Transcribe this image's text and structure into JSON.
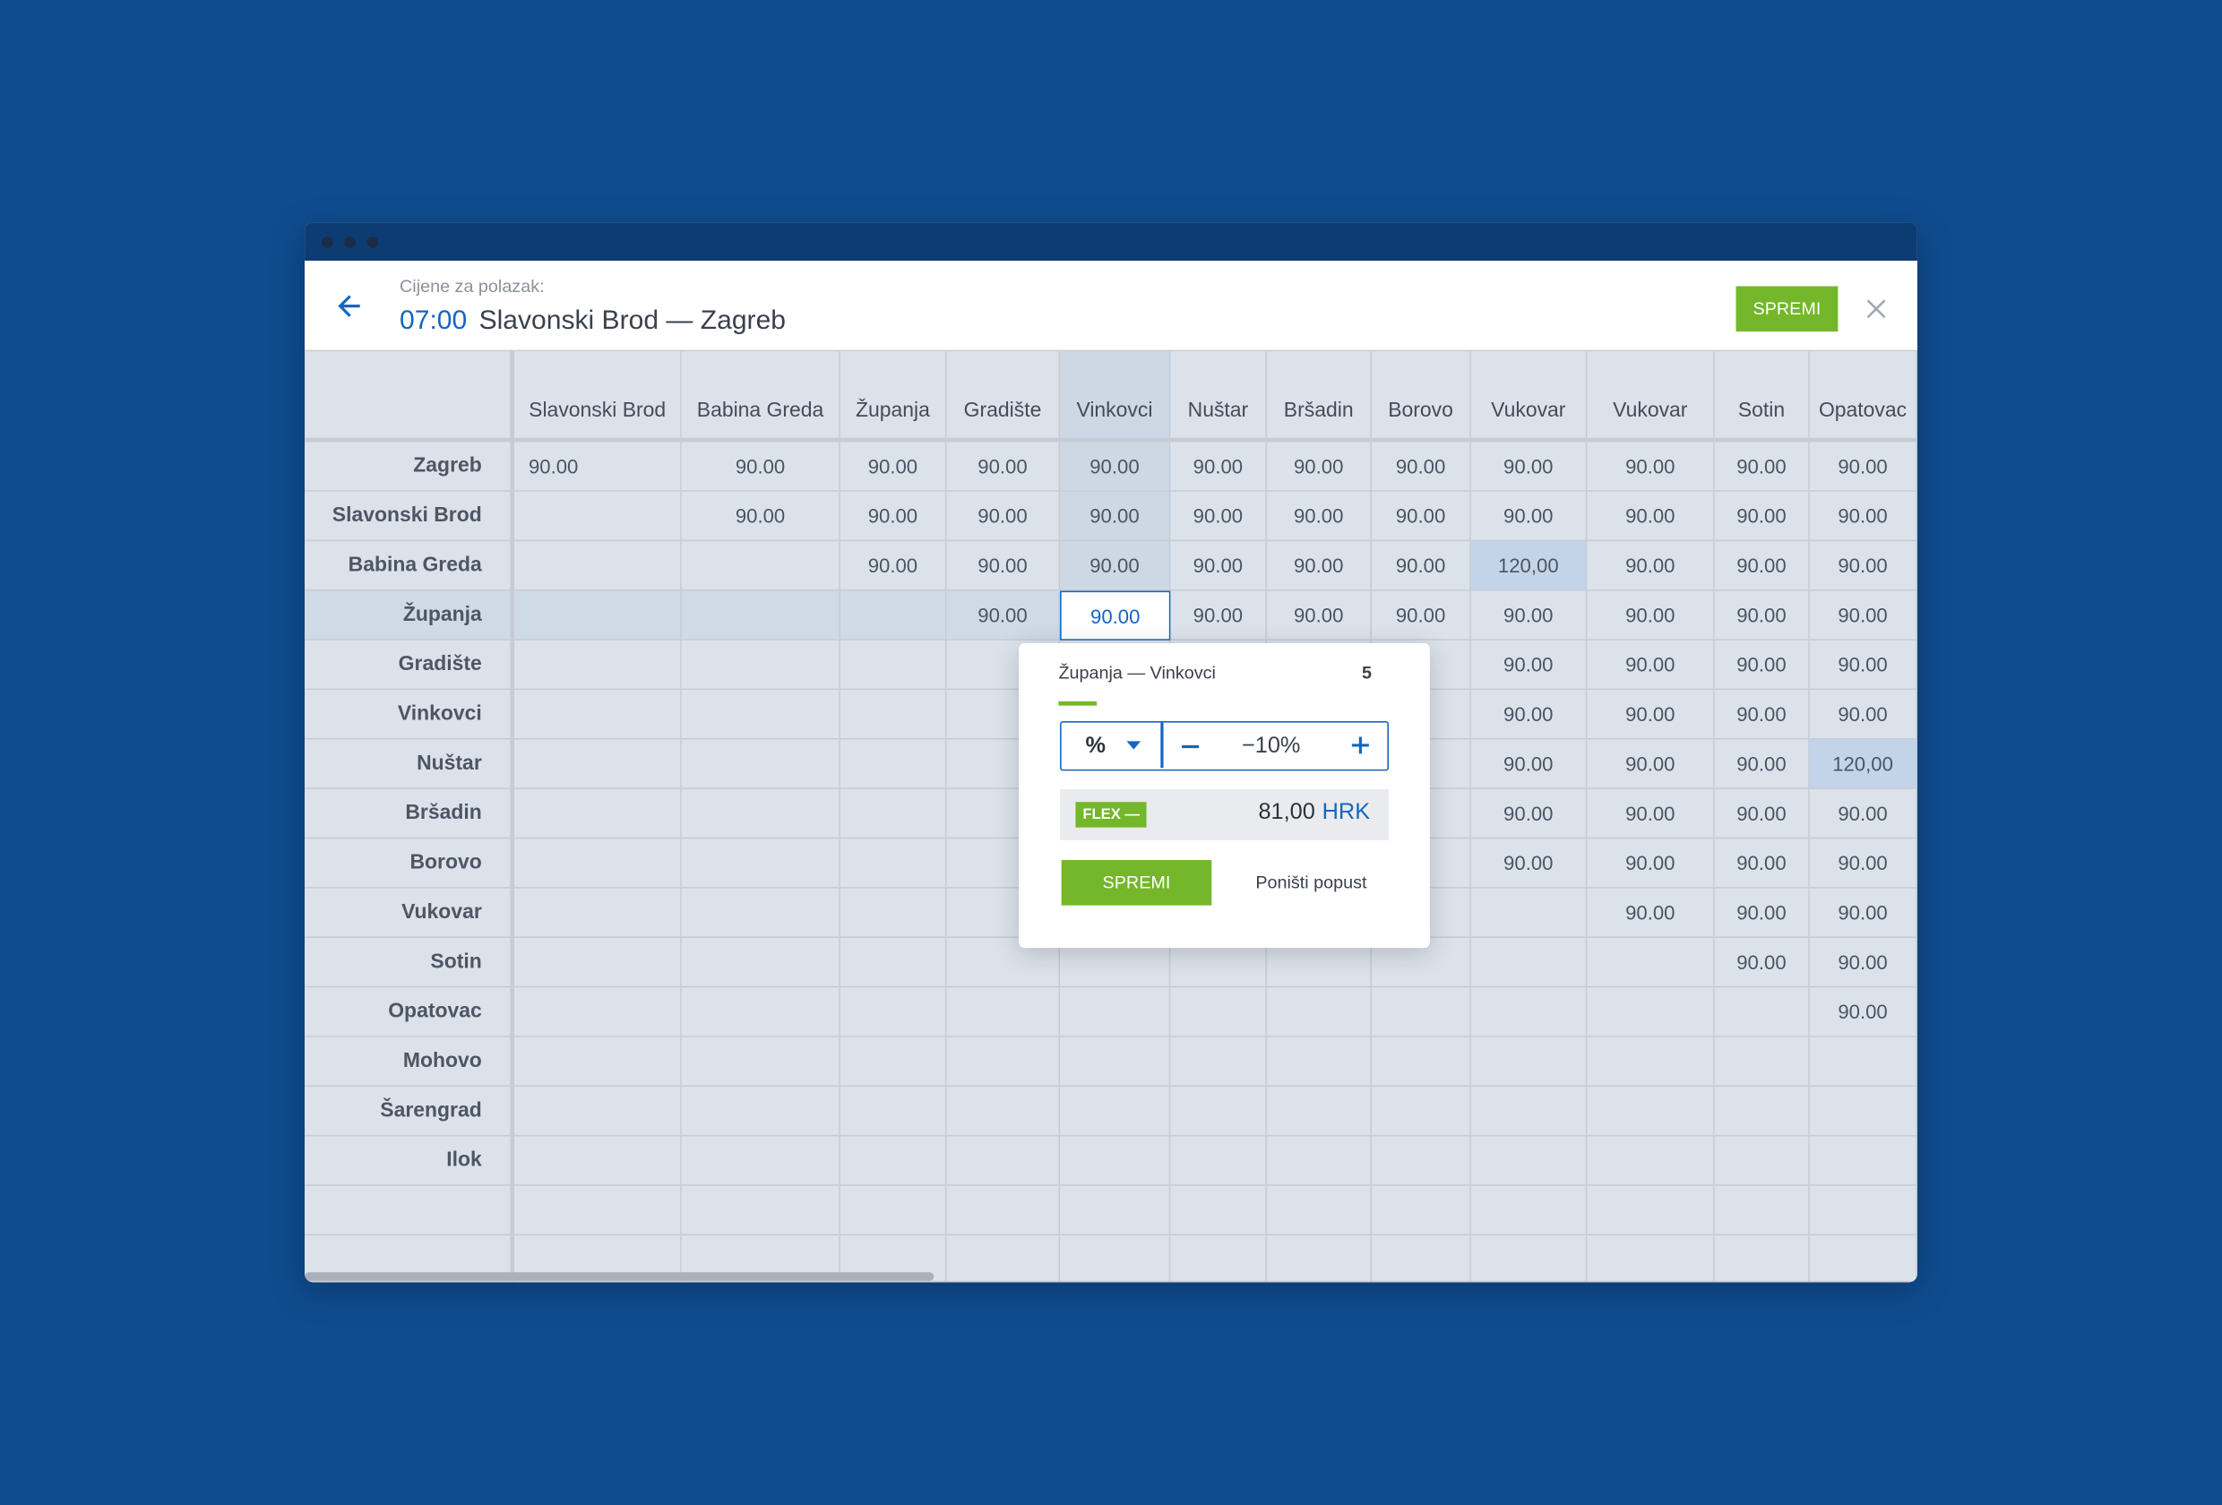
{
  "header": {
    "subtitle": "Cijene za polazak:",
    "time": "07:00",
    "route": "Slavonski Brod — Zagreb",
    "save": "SPREMI"
  },
  "table": {
    "columns": [
      "Slavonski Brod",
      "Babina Greda",
      "Županja",
      "Gradište",
      "Vinkovci",
      "Nuštar",
      "Bršadin",
      "Borovo",
      "Vukovar",
      "Vukovar",
      "Sotin",
      "Opatovac"
    ],
    "rows": [
      {
        "label": "Zagreb",
        "cells": [
          "90.00",
          "90.00",
          "90.00",
          "90.00",
          "90.00",
          "90.00",
          "90.00",
          "90.00",
          "90.00",
          "90.00",
          "90.00",
          "90.00"
        ]
      },
      {
        "label": "Slavonski Brod",
        "cells": [
          null,
          "90.00",
          "90.00",
          "90.00",
          "90.00",
          "90.00",
          "90.00",
          "90.00",
          "90.00",
          "90.00",
          "90.00",
          "90.00"
        ]
      },
      {
        "label": "Babina Greda",
        "cells": [
          null,
          null,
          "90.00",
          "90.00",
          "90.00",
          "90.00",
          "90.00",
          "90.00",
          "120,00",
          "90.00",
          "90.00",
          "90.00"
        ]
      },
      {
        "label": "Županja",
        "cells": [
          null,
          null,
          null,
          "90.00",
          "90.00",
          "90.00",
          "90.00",
          "90.00",
          "90.00",
          "90.00",
          "90.00",
          "90.00"
        ]
      },
      {
        "label": "Gradište",
        "cells": [
          null,
          null,
          null,
          null,
          null,
          null,
          null,
          null,
          "90.00",
          "90.00",
          "90.00",
          "90.00"
        ]
      },
      {
        "label": "Vinkovci",
        "cells": [
          null,
          null,
          null,
          null,
          null,
          null,
          null,
          null,
          "90.00",
          "90.00",
          "90.00",
          "90.00"
        ]
      },
      {
        "label": "Nuštar",
        "cells": [
          null,
          null,
          null,
          null,
          null,
          null,
          null,
          null,
          "90.00",
          "90.00",
          "90.00",
          "120,00"
        ]
      },
      {
        "label": "Bršadin",
        "cells": [
          null,
          null,
          null,
          null,
          null,
          null,
          null,
          null,
          "90.00",
          "90.00",
          "90.00",
          "90.00"
        ]
      },
      {
        "label": "Borovo",
        "cells": [
          null,
          null,
          null,
          null,
          null,
          null,
          null,
          null,
          "90.00",
          "90.00",
          "90.00",
          "90.00"
        ]
      },
      {
        "label": "Vukovar",
        "cells": [
          null,
          null,
          null,
          null,
          null,
          null,
          null,
          null,
          null,
          "90.00",
          "90.00",
          "90.00"
        ]
      },
      {
        "label": "Sotin",
        "cells": [
          null,
          null,
          null,
          null,
          null,
          null,
          null,
          null,
          null,
          null,
          "90.00",
          "90.00"
        ]
      },
      {
        "label": "Opatovac",
        "cells": [
          null,
          null,
          null,
          null,
          null,
          null,
          null,
          null,
          null,
          null,
          null,
          "90.00"
        ]
      },
      {
        "label": "Mohovo",
        "cells": [
          null,
          null,
          null,
          null,
          null,
          null,
          null,
          null,
          null,
          null,
          null,
          null
        ]
      },
      {
        "label": "Šarengrad",
        "cells": [
          null,
          null,
          null,
          null,
          null,
          null,
          null,
          null,
          null,
          null,
          null,
          null
        ]
      },
      {
        "label": "Ilok",
        "cells": [
          null,
          null,
          null,
          null,
          null,
          null,
          null,
          null,
          null,
          null,
          null,
          null
        ]
      }
    ]
  },
  "popup": {
    "route": "Županja —  Vinkovci",
    "count": "5",
    "unit": "%",
    "value": "−10%",
    "tag": "FLEX —",
    "price": "81,00",
    "currency": "HRK",
    "save": "SPREMI",
    "cancel": "Poništi popust"
  }
}
